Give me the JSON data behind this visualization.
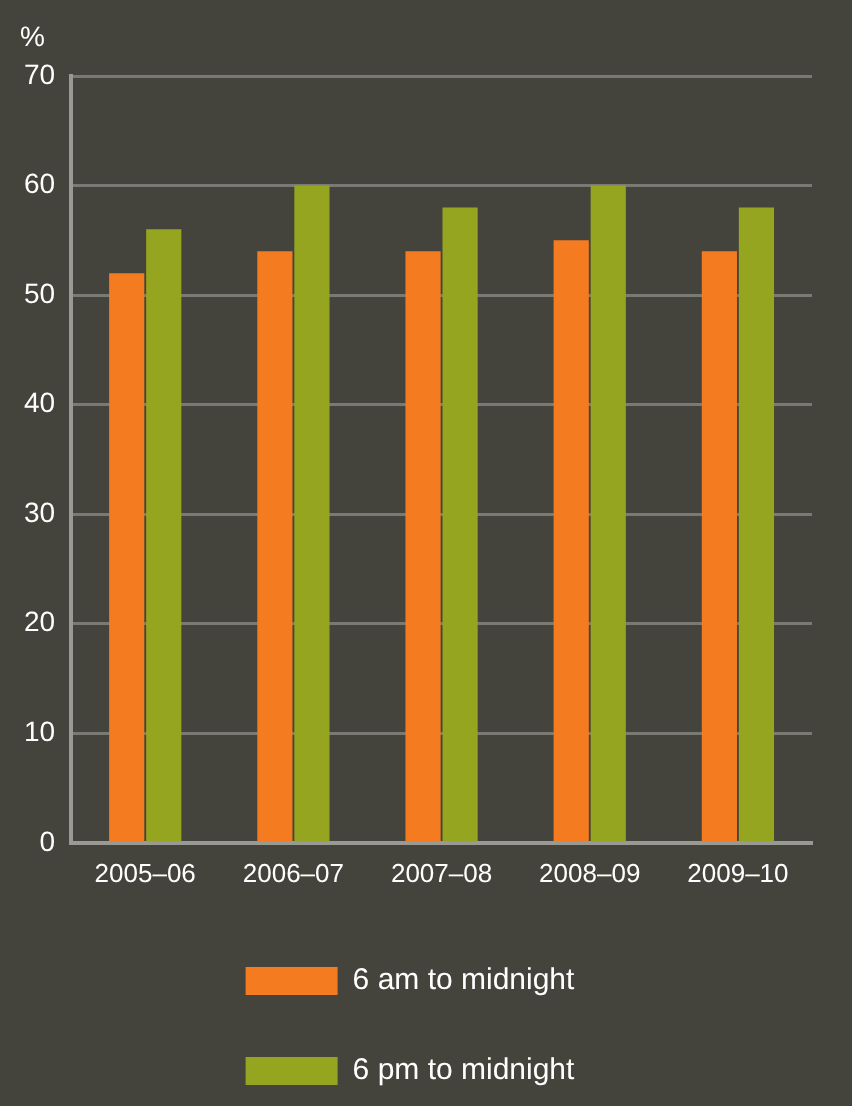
{
  "chart_data": {
    "type": "bar",
    "ylabel": "%",
    "categories": [
      "2005–06",
      "2006–07",
      "2007–08",
      "2008–09",
      "2009–10"
    ],
    "series": [
      {
        "name": "6 am to midnight",
        "color": "#f47b20",
        "values": [
          52,
          54,
          54,
          55,
          54
        ]
      },
      {
        "name": "6 pm to midnight",
        "color": "#95a51f",
        "values": [
          56,
          60,
          58,
          60,
          58
        ]
      }
    ],
    "ylim": [
      0,
      70
    ],
    "yticks": [
      0,
      10,
      20,
      30,
      40,
      50,
      60,
      70
    ],
    "grid": "y",
    "legend": "bottom"
  }
}
